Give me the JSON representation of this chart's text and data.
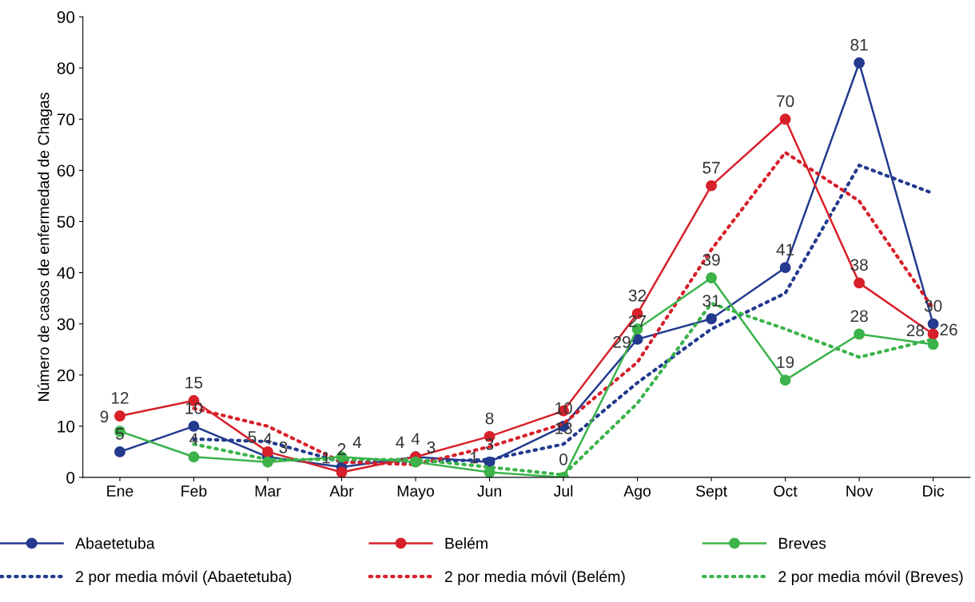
{
  "chart_data": {
    "type": "line",
    "ylabel": "Número de casos de enfermedad de Chagas",
    "categories": [
      "Ene",
      "Feb",
      "Mar",
      "Abr",
      "Mayo",
      "Jun",
      "Jul",
      "Ago",
      "Sept",
      "Oct",
      "Nov",
      "Dic"
    ],
    "ylim": [
      0,
      90
    ],
    "yticks": [
      0,
      10,
      20,
      30,
      40,
      50,
      60,
      70,
      80,
      90
    ],
    "grid": false,
    "legend": "bottom",
    "series": [
      {
        "name": "Abaetetuba",
        "color": "#233a8e",
        "marker": "circle",
        "line_style": "solid",
        "values": [
          5,
          10,
          4,
          2,
          4,
          3,
          10,
          27,
          31,
          41,
          81,
          30
        ],
        "value_labels": [
          "5",
          "10",
          "4",
          "2",
          "4",
          "3",
          "10",
          "27",
          "31",
          "41",
          "81",
          "30"
        ]
      },
      {
        "name": "2 por media móvil (Abaetetuba)",
        "color": "#233a8e",
        "marker": "none",
        "line_style": "dotted",
        "values": [
          null,
          7.5,
          7,
          3,
          3,
          3.5,
          6.5,
          18.5,
          29,
          36,
          61,
          55.5
        ]
      },
      {
        "name": "Belém",
        "color": "#d7202a",
        "marker": "circle",
        "line_style": "solid",
        "values": [
          12,
          15,
          5,
          1,
          4,
          8,
          13,
          32,
          57,
          70,
          38,
          28
        ],
        "value_labels": [
          "12",
          "15",
          "5",
          "1",
          "4",
          "8",
          "13",
          "32",
          "57",
          "70",
          "38",
          "28"
        ]
      },
      {
        "name": "2 por media móvil (Belém)",
        "color": "#d7202a",
        "marker": "none",
        "line_style": "dotted",
        "values": [
          null,
          13.5,
          10,
          3,
          2.5,
          6,
          10.5,
          22.5,
          44.5,
          63.5,
          54,
          33
        ]
      },
      {
        "name": "Breves",
        "color": "#3bb34a",
        "marker": "circle",
        "line_style": "solid",
        "values": [
          9,
          4,
          3,
          4,
          3,
          1,
          0,
          29,
          39,
          19,
          28,
          26
        ],
        "value_labels": [
          "9",
          "4",
          "3",
          "4",
          "3",
          "1",
          "0",
          "29",
          "39",
          "19",
          "28",
          "26"
        ]
      },
      {
        "name": "2 por media móvil (Breves)",
        "color": "#3bb34a",
        "marker": "none",
        "line_style": "dotted",
        "values": [
          null,
          6.5,
          3.5,
          3.5,
          3.5,
          2,
          0.5,
          14.5,
          34,
          29,
          23.5,
          27
        ]
      }
    ]
  }
}
